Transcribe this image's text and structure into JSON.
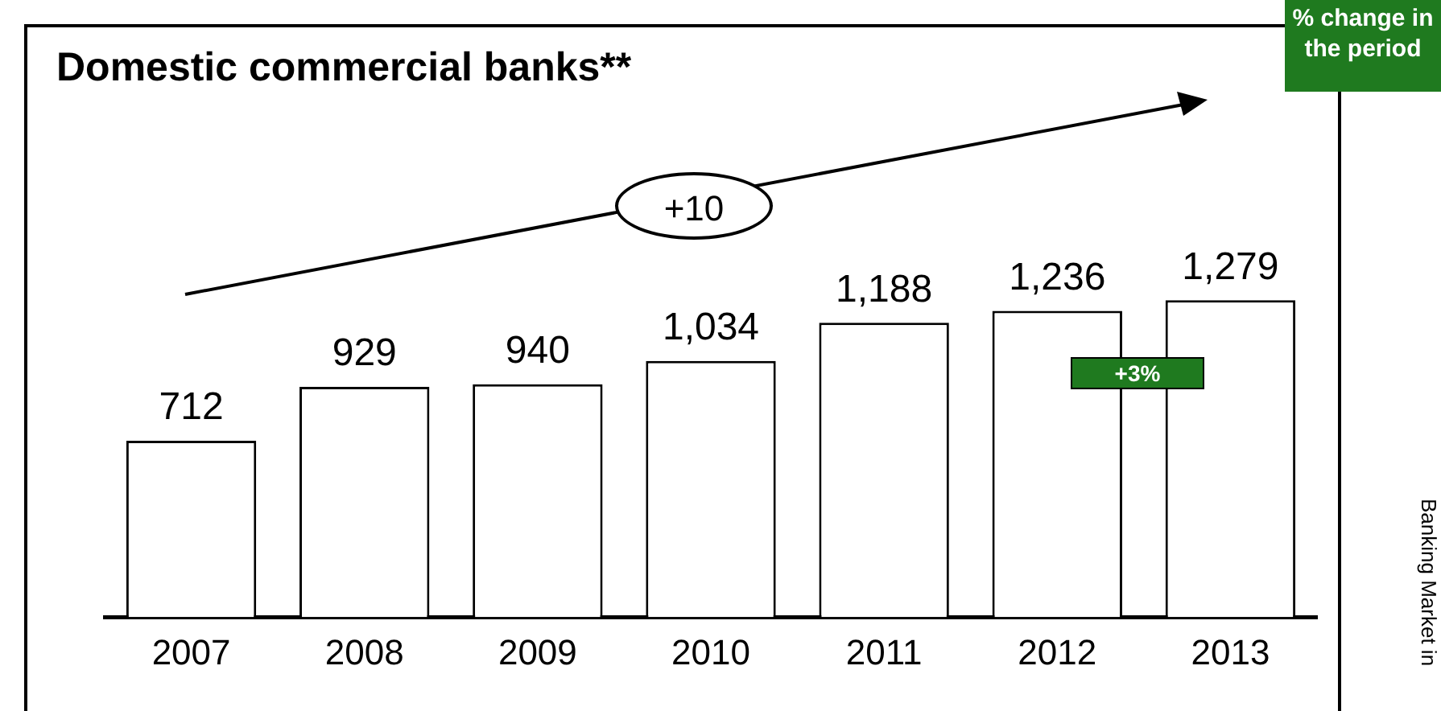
{
  "chart_data": {
    "type": "bar",
    "title": "Domestic commercial banks**",
    "categories": [
      "2007",
      "2008",
      "2009",
      "2010",
      "2011",
      "2012",
      "2013"
    ],
    "values": [
      712,
      929,
      940,
      1034,
      1188,
      1236,
      1279
    ],
    "color": "#ffffff",
    "value_labels": [
      "712",
      "929",
      "940",
      "1,034",
      "1,188",
      "1,236",
      "1,279"
    ],
    "grid": false,
    "legend": false,
    "annotations": [
      "% change in the period",
      "+10",
      "+3%",
      "Banking Market in"
    ]
  }
}
